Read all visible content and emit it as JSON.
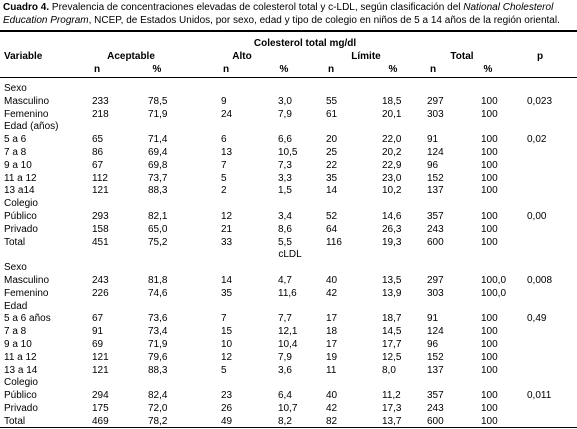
{
  "caption": {
    "label": "Cuadro 4.",
    "text_before": "Prevalencia de concentraciones elevadas de colesterol total y c-LDL, según clasificación del ",
    "italic": "National Cholesterol Education Program",
    "text_after": ", NCEP, de Estados Unidos, por sexo, edad y tipo de colegio en niños de 5 a 14 años de la región oriental."
  },
  "table": {
    "group_header": "Colesterol total mg/dl",
    "columns": [
      "Variable",
      "Aceptable",
      "Alto",
      "Límite",
      "Total",
      "p"
    ],
    "subcolumns": [
      "n",
      "%",
      "n",
      "%",
      "n",
      "%",
      "n",
      "%"
    ],
    "parts": [
      {
        "blocks": [
          {
            "title": "Sexo",
            "rows": [
              {
                "label": "Masculino",
                "cells": [
                  "233",
                  "78,5",
                  "9",
                  "3,0",
                  "55",
                  "18,5",
                  "297",
                  "100"
                ],
                "p": "0,023"
              },
              {
                "label": "Femenino",
                "cells": [
                  "218",
                  "71,9",
                  "24",
                  "7,9",
                  "61",
                  "20,1",
                  "303",
                  "100"
                ]
              }
            ]
          },
          {
            "title": "Edad (años)",
            "rows": [
              {
                "label": "5 a 6",
                "cells": [
                  "65",
                  "71,4",
                  "6",
                  "6,6",
                  "20",
                  "22,0",
                  "91",
                  "100"
                ],
                "p": "0,02"
              },
              {
                "label": "7 a 8",
                "cells": [
                  "86",
                  "69,4",
                  "13",
                  "10,5",
                  "25",
                  "20,2",
                  "124",
                  "100"
                ]
              },
              {
                "label": "9 a 10",
                "cells": [
                  "67",
                  "69,8",
                  "7",
                  "7,3",
                  "22",
                  "22,9",
                  "96",
                  "100"
                ]
              },
              {
                "label": "11 a 12",
                "cells": [
                  "112",
                  "73,7",
                  "5",
                  "3,3",
                  "35",
                  "23,0",
                  "152",
                  "100"
                ]
              },
              {
                "label": "13 a14",
                "cells": [
                  "121",
                  "88,3",
                  "2",
                  "1,5",
                  "14",
                  "10,2",
                  "137",
                  "100"
                ]
              }
            ]
          },
          {
            "title": "Colegio",
            "rows": [
              {
                "label": "Público",
                "cells": [
                  "293",
                  "82,1",
                  "12",
                  "3,4",
                  "52",
                  "14,6",
                  "357",
                  "100"
                ],
                "p": "0,00"
              },
              {
                "label": "Privado",
                "cells": [
                  "158",
                  "65,0",
                  "21",
                  "8,6",
                  "64",
                  "26,3",
                  "243",
                  "100"
                ]
              },
              {
                "label": "Total",
                "cells": [
                  "451",
                  "75,2",
                  "33",
                  "5,5",
                  "116",
                  "19,3",
                  "600",
                  "100"
                ]
              }
            ]
          }
        ]
      },
      {
        "title": "cLDL",
        "blocks": [
          {
            "title": "Sexo",
            "rows": [
              {
                "label": "Masculino",
                "cells": [
                  "243",
                  "81,8",
                  "14",
                  "4,7",
                  "40",
                  "13,5",
                  "297",
                  "100,0"
                ],
                "p": "0,008"
              },
              {
                "label": "Femenino",
                "cells": [
                  "226",
                  "74,6",
                  "35",
                  "11,6",
                  "42",
                  "13,9",
                  "303",
                  "100,0"
                ]
              }
            ]
          },
          {
            "title": "Edad",
            "rows": [
              {
                "label": "5 a 6 años",
                "cells": [
                  "67",
                  "73,6",
                  "7",
                  "7,7",
                  "17",
                  "18,7",
                  "91",
                  "100"
                ],
                "p": "0,49"
              },
              {
                "label": "7 a 8",
                "cells": [
                  "91",
                  "73,4",
                  "15",
                  "12,1",
                  "18",
                  "14,5",
                  "124",
                  "100"
                ]
              },
              {
                "label": "9 a 10",
                "cells": [
                  "69",
                  "71,9",
                  "10",
                  "10,4",
                  "17",
                  "17,7",
                  "96",
                  "100"
                ]
              },
              {
                "label": "11 a 12",
                "cells": [
                  "121",
                  "79,6",
                  "12",
                  "7,9",
                  "19",
                  "12,5",
                  "152",
                  "100"
                ]
              },
              {
                "label": "13 a 14",
                "cells": [
                  "121",
                  "88,3",
                  "5",
                  "3,6",
                  "11",
                  "8,0",
                  "137",
                  "100"
                ]
              }
            ]
          },
          {
            "title": "Colegio",
            "rows": [
              {
                "label": "Público",
                "cells": [
                  "294",
                  "82,4",
                  "23",
                  "6,4",
                  "40",
                  "11,2",
                  "357",
                  "100"
                ],
                "p": "0,011"
              },
              {
                "label": "Privado",
                "cells": [
                  "175",
                  "72,0",
                  "26",
                  "10,7",
                  "42",
                  "17,3",
                  "243",
                  "100"
                ]
              },
              {
                "label": "Total",
                "cells": [
                  "469",
                  "78,2",
                  "49",
                  "8,2",
                  "82",
                  "13,7",
                  "600",
                  "100"
                ]
              }
            ]
          }
        ]
      }
    ]
  }
}
